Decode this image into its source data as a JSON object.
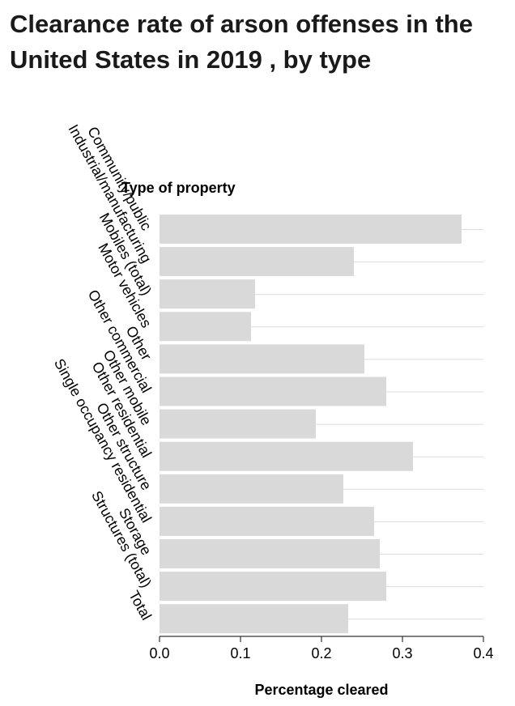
{
  "chart_data": {
    "type": "bar",
    "orientation": "horizontal",
    "title": "Clearance rate of arson offenses in the United States in 2019 , by type",
    "ylabel": "Type of property",
    "xlabel": "Percentage cleared",
    "categories": [
      "Community/public",
      "Industrial/manufacturing",
      "Mobiles (total)",
      "Motor vehicles",
      "Other",
      "Other commercial",
      "Other mobile",
      "Other residential",
      "Other structure",
      "Single occupancy residential",
      "Storage",
      "Structures (total)",
      "Total"
    ],
    "values": [
      0.373,
      0.24,
      0.118,
      0.113,
      0.253,
      0.28,
      0.193,
      0.313,
      0.227,
      0.265,
      0.272,
      0.28,
      0.233
    ],
    "xlim": [
      0,
      0.4
    ],
    "xticks": [
      "0.0",
      "0.1",
      "0.2",
      "0.3",
      "0.4"
    ],
    "bar_color": "#d9d9d9",
    "grid": "vertical-axis-lines"
  }
}
